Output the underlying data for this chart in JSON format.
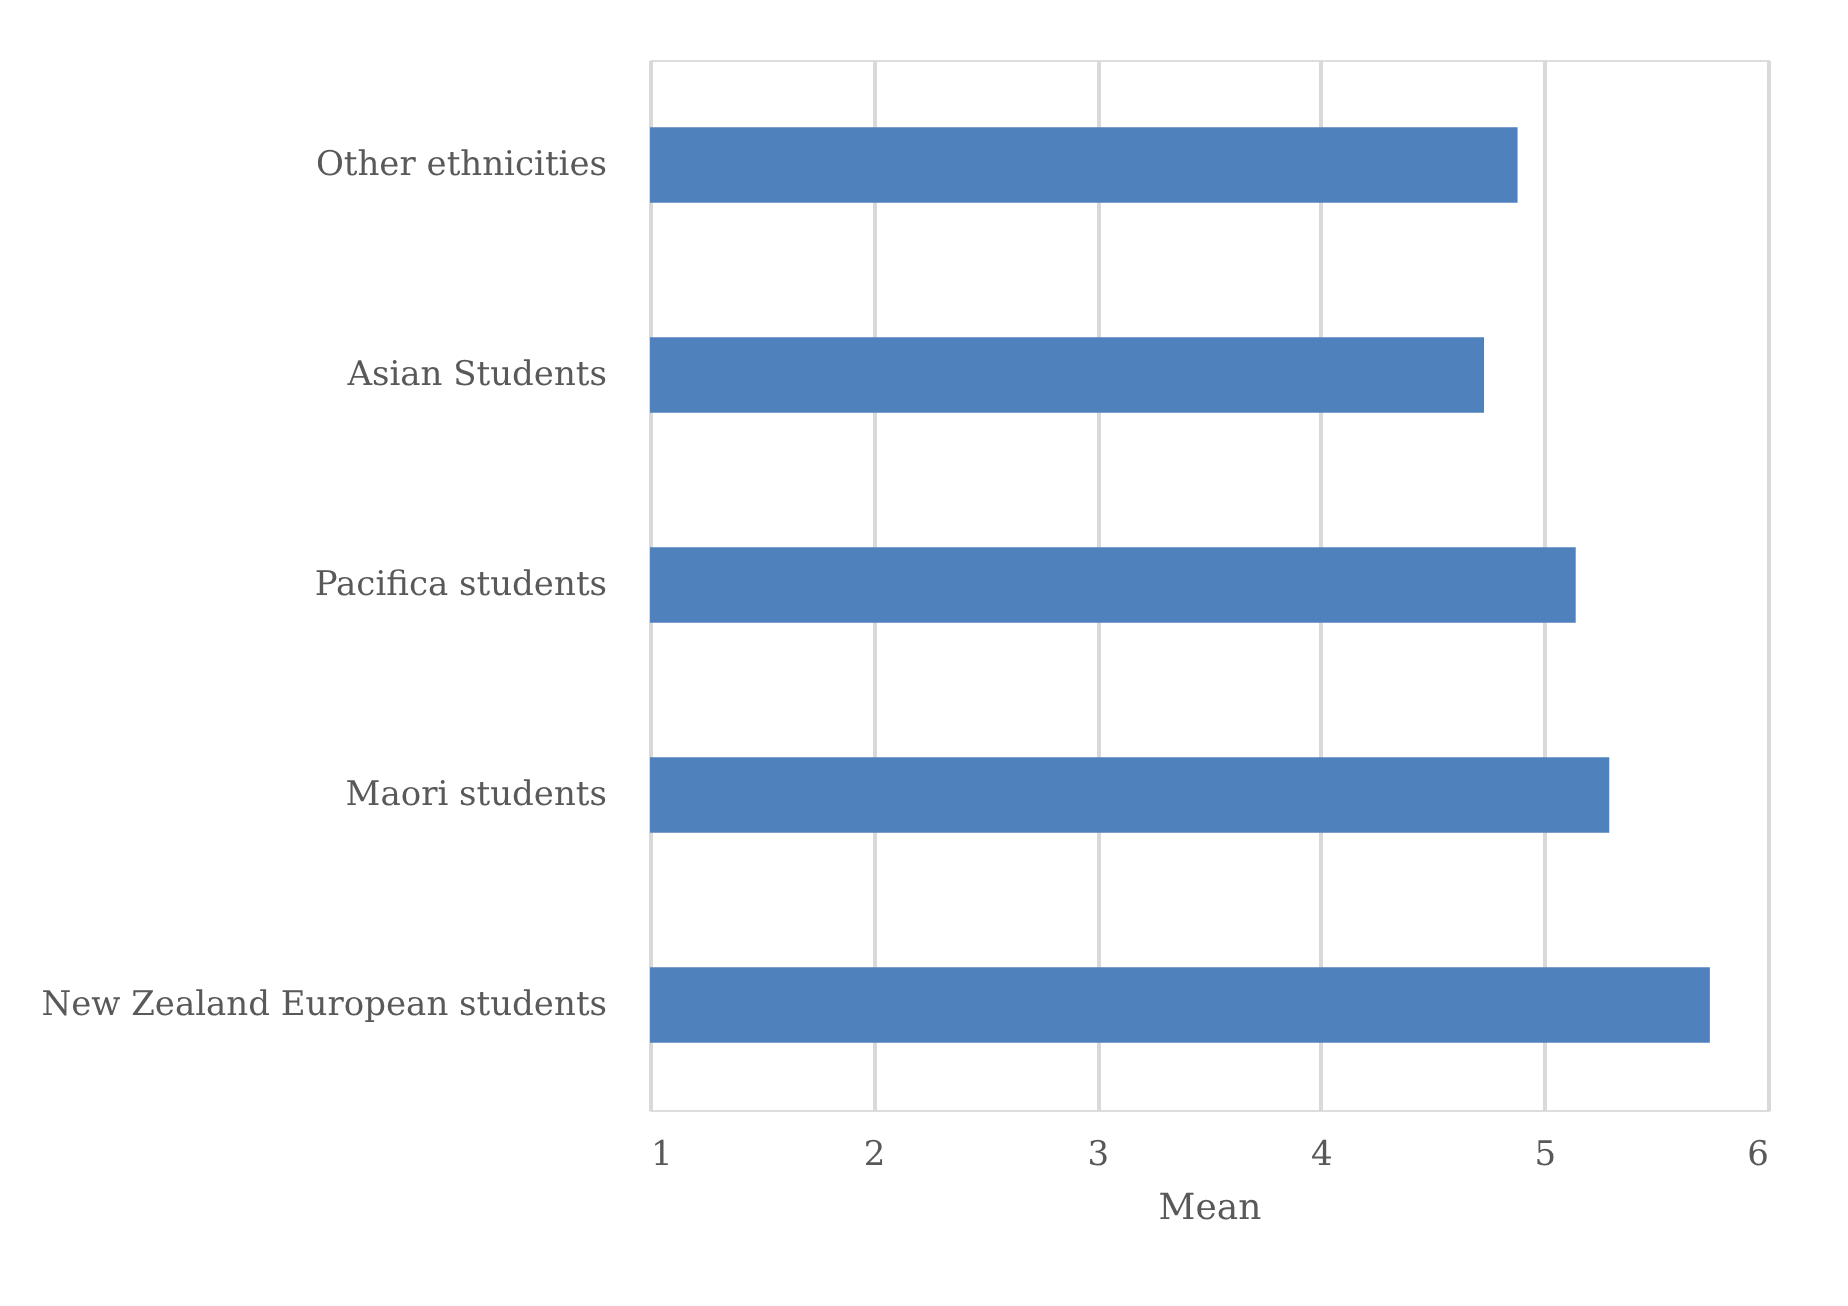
{
  "chart_data": {
    "type": "bar",
    "orientation": "horizontal",
    "xlabel": "Mean",
    "categories": [
      "Other ethnicities",
      "Asian Students",
      "Pacifica students",
      "Maori students",
      "New Zealand European students"
    ],
    "values": [
      4.88,
      4.73,
      5.14,
      5.29,
      5.74
    ],
    "color": "#4f81bd",
    "xlim": [
      1,
      6
    ],
    "xticks": [
      1,
      2,
      3,
      4,
      5,
      6
    ],
    "grid": "x"
  }
}
